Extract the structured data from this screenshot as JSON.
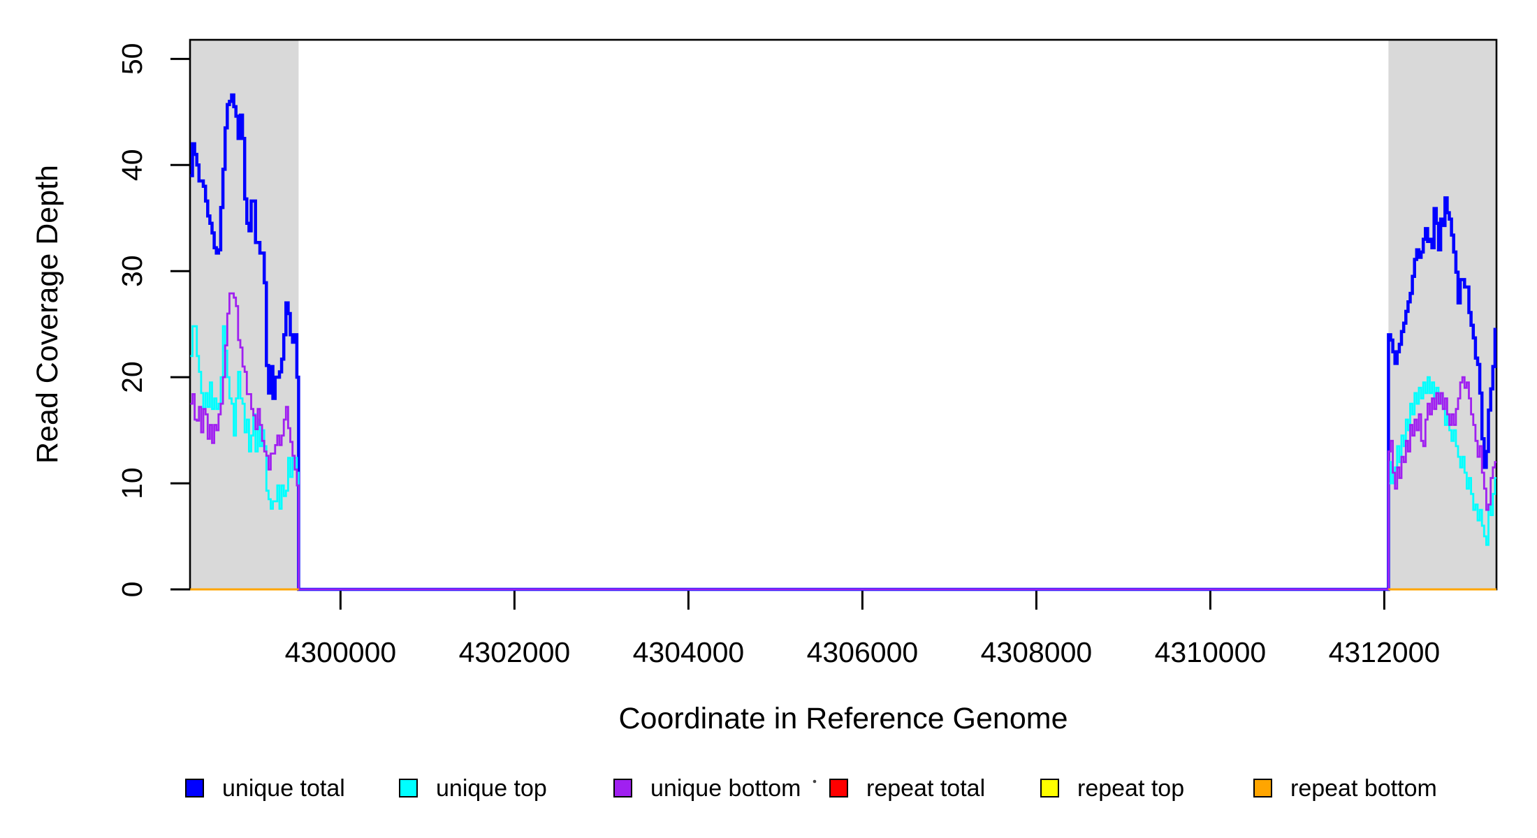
{
  "chart_data": {
    "type": "line",
    "subtype": "step-coverage",
    "xlabel": "Coordinate in Reference Genome",
    "ylabel": "Read Coverage Depth",
    "xlim": [
      4298270,
      4313290
    ],
    "ylim": [
      0,
      51.8
    ],
    "x_ticks": [
      4300000,
      4302000,
      4304000,
      4306000,
      4308000,
      4310000,
      4312000
    ],
    "y_ticks": [
      0,
      10,
      20,
      30,
      40,
      50
    ],
    "grid": false,
    "shade_color": "#d9d9d9",
    "shaded_regions": [
      {
        "x0": 4298270,
        "x1": 4299518
      },
      {
        "x0": 4312048,
        "x1": 4313290
      }
    ],
    "series": [
      {
        "name": "unique total",
        "color": "#0000ff",
        "width": 4.5,
        "regions": [
          {
            "x_start": 4298273,
            "x_step": 25,
            "x_end": 4299518,
            "values": [
              39,
              42,
              41,
              40,
              38.5,
              38.5,
              38,
              36.6,
              35.2,
              34.5,
              33.6,
              32.2,
              31.7,
              32,
              36,
              39.6,
              43.5,
              45.7,
              46,
              46.6,
              45.5,
              44.6,
              42.5,
              44.7,
              42.5,
              36.8,
              34.5,
              33.8,
              36.6,
              36.6,
              32.7,
              32.7,
              31.7,
              31.7,
              28.9,
              21.1,
              18.5,
              21,
              18,
              20,
              20,
              20.5,
              21.7,
              24,
              27,
              26,
              24,
              23.3,
              24,
              20
            ]
          },
          {
            "x_start": 4312048,
            "x_step": 25,
            "x_end": 4313290,
            "values": [
              24,
              23.5,
              22.4,
              21.3,
              22.4,
              23.1,
              24.3,
              25.1,
              26.2,
              27.1,
              27.9,
              29.5,
              31.1,
              32,
              31.3,
              31.8,
              33,
              34,
              32.8,
              33,
              32.2,
              35.9,
              34.5,
              32,
              34.9,
              34.3,
              36.9,
              35.5,
              34.9,
              33.4,
              31.8,
              29.9,
              27,
              29.2,
              29.2,
              28.5,
              28.5,
              26.1,
              24.9,
              23.7,
              21.8,
              21.2,
              18.5,
              14.2,
              11.5,
              13,
              16.9,
              18.9,
              21,
              24.5
            ]
          }
        ],
        "between_value": 0
      },
      {
        "name": "unique top",
        "color": "#00ffff",
        "width": 2.8,
        "regions": [
          {
            "x_start": 4298273,
            "x_step": 25,
            "x_end": 4299518,
            "values": [
              22,
              24.8,
              24.8,
              22,
              20.5,
              18.5,
              17,
              18.5,
              17.2,
              19.5,
              17,
              18,
              17,
              17.5,
              20,
              24.8,
              22.5,
              20,
              18,
              17.5,
              14.5,
              18,
              20.5,
              18,
              17.5,
              14.8,
              16,
              13,
              14.5,
              16.5,
              13,
              16,
              13.5,
              15,
              13.5,
              9.3,
              8.5,
              7.6,
              8.3,
              8.3,
              9.8,
              7.6,
              9.8,
              8.8,
              9.3,
              12.4,
              10.6,
              12.4,
              12.4,
              11
            ]
          },
          {
            "x_start": 4312048,
            "x_step": 25,
            "x_end": 4313290,
            "values": [
              10,
              12,
              10,
              11.5,
              13.5,
              12,
              14.5,
              13.5,
              16,
              15,
              17.5,
              16.5,
              18.5,
              17.5,
              19,
              18,
              19.5,
              18.5,
              20,
              18.5,
              19.5,
              18,
              19,
              17.5,
              18.5,
              17,
              15.5,
              16.5,
              15,
              14,
              15,
              13.5,
              12.5,
              11.5,
              12.5,
              11,
              9.5,
              10.5,
              9,
              7.5,
              8,
              6.5,
              7.5,
              6,
              5,
              4.2,
              8,
              7,
              9,
              10.5
            ]
          }
        ],
        "between_value": 0
      },
      {
        "name": "unique bottom",
        "color": "#a020f0",
        "width": 2.8,
        "regions": [
          {
            "x_start": 4298273,
            "x_step": 25,
            "x_end": 4299518,
            "values": [
              17.5,
              18.4,
              16,
              15.9,
              17.2,
              14.8,
              17,
              16.5,
              14.2,
              15.5,
              13.8,
              15.5,
              15,
              16.5,
              17.5,
              20,
              23,
              26,
              27.9,
              27.9,
              27.5,
              26.7,
              23.5,
              22.8,
              21,
              20.5,
              18.4,
              18.4,
              17,
              16.4,
              15.1,
              17,
              15.5,
              14,
              13,
              12.6,
              11.3,
              12.8,
              12.8,
              13.6,
              14.5,
              13.6,
              14.5,
              16,
              17.2,
              15.2,
              13.9,
              12.6,
              11.3,
              9.8
            ]
          },
          {
            "x_start": 4312048,
            "x_step": 25,
            "x_end": 4313290,
            "values": [
              13,
              14,
              11,
              9.5,
              11.5,
              10.5,
              12.5,
              12,
              14,
              13,
              15.5,
              14.5,
              16,
              15,
              16.5,
              14,
              13.5,
              16,
              17.5,
              16.5,
              18,
              17,
              18.5,
              17.5,
              18.5,
              17,
              18,
              16.5,
              15.5,
              16.5,
              15.5,
              17,
              18,
              19.5,
              20,
              19,
              19.5,
              18,
              16.5,
              15.5,
              14,
              12.5,
              13.5,
              11,
              9.5,
              7.5,
              8,
              10.5,
              11.5,
              12
            ]
          }
        ],
        "between_value": 0
      },
      {
        "name": "repeat total",
        "color": "#ff0000",
        "width": 2.8,
        "disjoint": true,
        "regions": [
          {
            "x_start": 4298273,
            "x_step": 1245,
            "x_end": 4299518,
            "values": [
              0,
              0
            ]
          },
          {
            "x_start": 4312048,
            "x_step": 1242,
            "x_end": 4313290,
            "values": [
              0,
              0
            ]
          }
        ]
      },
      {
        "name": "repeat top",
        "color": "#ffff00",
        "width": 2.8,
        "disjoint": true,
        "regions": [
          {
            "x_start": 4298273,
            "x_step": 1245,
            "x_end": 4299518,
            "values": [
              0,
              0
            ]
          },
          {
            "x_start": 4312048,
            "x_step": 1242,
            "x_end": 4313290,
            "values": [
              0,
              0
            ]
          }
        ]
      },
      {
        "name": "repeat bottom",
        "color": "#ffa500",
        "width": 3,
        "disjoint": true,
        "regions": [
          {
            "x_start": 4298273,
            "x_step": 1245,
            "x_end": 4299518,
            "values": [
              0,
              0
            ]
          },
          {
            "x_start": 4312048,
            "x_step": 1242,
            "x_end": 4313290,
            "values": [
              0,
              0
            ]
          }
        ]
      }
    ]
  },
  "legend": {
    "items": [
      {
        "label": "unique total",
        "color": "#0000ff"
      },
      {
        "label": "unique top",
        "color": "#00ffff"
      },
      {
        "label": "unique bottom",
        "color": "#a020f0"
      },
      {
        "label": "repeat total",
        "color": "#ff0000"
      },
      {
        "label": "repeat top",
        "color": "#ffff00"
      },
      {
        "label": "repeat bottom",
        "color": "#ffa500"
      }
    ]
  }
}
